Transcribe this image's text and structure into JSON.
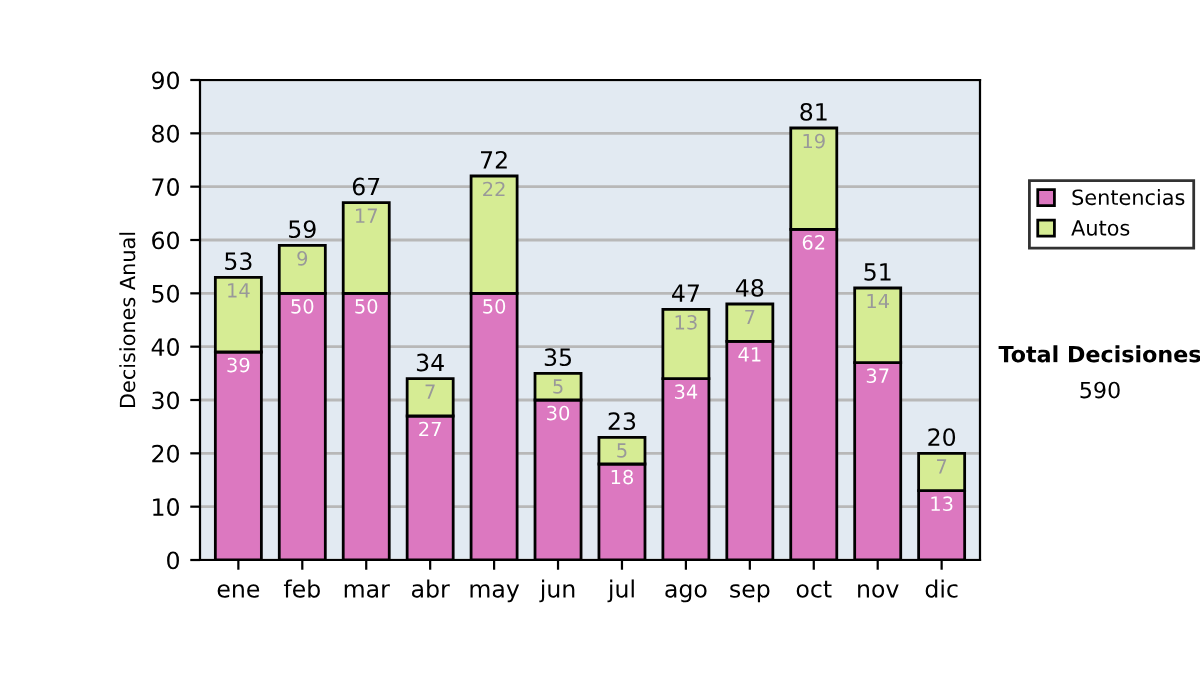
{
  "chart_data": {
    "type": "bar",
    "stacked": true,
    "ylabel": "Decisiones Anual",
    "categories": [
      "ene",
      "feb",
      "mar",
      "abr",
      "may",
      "jun",
      "jul",
      "ago",
      "sep",
      "oct",
      "nov",
      "dic"
    ],
    "series": [
      {
        "name": "Sentencias",
        "color": "#dc78c0",
        "values": [
          39,
          50,
          50,
          27,
          50,
          30,
          18,
          34,
          41,
          62,
          37,
          13
        ]
      },
      {
        "name": "Autos",
        "color": "#d6ec94",
        "values": [
          14,
          9,
          17,
          7,
          22,
          5,
          5,
          13,
          7,
          19,
          14,
          7
        ]
      }
    ],
    "data_labels": true,
    "totals": [
      "53",
      "59",
      "67",
      "34",
      "72",
      "35",
      "23",
      "47",
      "48",
      "81",
      "51",
      "20"
    ],
    "ylim": [
      0,
      90
    ],
    "yticks": [
      0,
      10,
      20,
      30,
      40,
      50,
      60,
      70,
      80,
      90
    ],
    "grid": "y",
    "legend": "right",
    "annotations": [
      "Total Decisiones",
      "590"
    ]
  }
}
